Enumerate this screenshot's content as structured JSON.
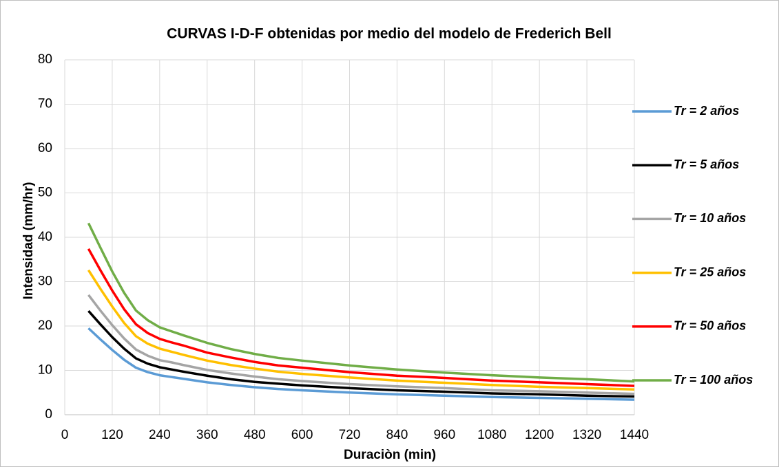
{
  "chart_data": {
    "type": "line",
    "title": "CURVAS I-D-F obtenidas por medio del modelo de Frederich Bell",
    "x_label": "Duraciòn (min)",
    "y_label": "Intensidad (mm/hr)",
    "x": [
      60,
      90,
      120,
      150,
      180,
      210,
      240,
      270,
      300,
      360,
      420,
      480,
      540,
      600,
      720,
      840,
      960,
      1080,
      1200,
      1320,
      1440
    ],
    "series": [
      {
        "name": "Tr = 2 años",
        "color": "#5b9bd5",
        "values": [
          19.5,
          17.0,
          14.6,
          12.4,
          10.6,
          9.6,
          8.9,
          8.5,
          8.1,
          7.3,
          6.7,
          6.2,
          5.8,
          5.5,
          5.0,
          4.6,
          4.3,
          4.0,
          3.8,
          3.6,
          3.4
        ]
      },
      {
        "name": "Tr = 5 años",
        "color": "#000000",
        "values": [
          23.4,
          20.4,
          17.5,
          14.9,
          12.7,
          11.5,
          10.7,
          10.2,
          9.7,
          8.8,
          8.0,
          7.4,
          7.0,
          6.6,
          6.0,
          5.5,
          5.2,
          4.8,
          4.6,
          4.3,
          4.1
        ]
      },
      {
        "name": "Tr = 10 años",
        "color": "#a5a5a5",
        "values": [
          27.0,
          23.5,
          20.2,
          17.2,
          14.7,
          13.3,
          12.3,
          11.8,
          11.2,
          10.1,
          9.3,
          8.6,
          8.0,
          7.6,
          6.9,
          6.4,
          6.0,
          5.5,
          5.3,
          5.0,
          4.7
        ]
      },
      {
        "name": "Tr = 25 años",
        "color": "#ffc000",
        "values": [
          32.6,
          28.4,
          24.4,
          20.7,
          17.7,
          16.0,
          14.9,
          14.2,
          13.5,
          12.2,
          11.2,
          10.4,
          9.7,
          9.2,
          8.4,
          7.7,
          7.2,
          6.7,
          6.3,
          6.0,
          5.7
        ]
      },
      {
        "name": "Tr = 50 años",
        "color": "#ff0000",
        "values": [
          37.4,
          32.6,
          28.0,
          23.8,
          20.4,
          18.4,
          17.1,
          16.3,
          15.6,
          14.0,
          12.9,
          11.9,
          11.1,
          10.6,
          9.6,
          8.8,
          8.3,
          7.7,
          7.3,
          6.9,
          6.5
        ]
      },
      {
        "name": "Tr = 100 años",
        "color": "#70ad47",
        "values": [
          43.2,
          37.7,
          32.3,
          27.5,
          23.5,
          21.3,
          19.7,
          18.8,
          17.9,
          16.2,
          14.8,
          13.7,
          12.8,
          12.2,
          11.1,
          10.2,
          9.5,
          8.9,
          8.4,
          8.0,
          7.5
        ]
      }
    ],
    "xlim": [
      0,
      1440
    ],
    "xticks": [
      0,
      120,
      240,
      360,
      480,
      600,
      720,
      840,
      960,
      1080,
      1200,
      1320,
      1440
    ],
    "ylim": [
      0,
      80
    ],
    "yticks": [
      0,
      10,
      20,
      30,
      40,
      50,
      60,
      70,
      80
    ],
    "grid": true,
    "legend": "right"
  }
}
